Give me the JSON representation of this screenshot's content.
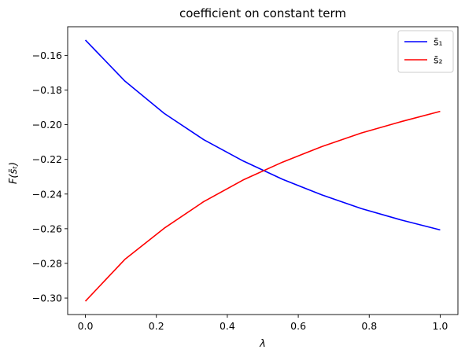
{
  "chart_data": {
    "type": "line",
    "title": "coefficient on constant term",
    "xlabel": "λ",
    "ylabel": "F(s̄ₜ)",
    "xlim": [
      -0.05,
      1.05
    ],
    "ylim": [
      -0.3095,
      -0.1435
    ],
    "x_ticks": [
      0.0,
      0.2,
      0.4,
      0.6,
      0.8,
      1.0
    ],
    "x_tick_labels": [
      "0.0",
      "0.2",
      "0.4",
      "0.6",
      "0.8",
      "1.0"
    ],
    "y_ticks": [
      -0.16,
      -0.18,
      -0.2,
      -0.22,
      -0.24,
      -0.26,
      -0.28,
      -0.3
    ],
    "y_tick_labels": [
      "−0.16",
      "−0.18",
      "−0.20",
      "−0.22",
      "−0.24",
      "−0.26",
      "−0.28",
      "−0.30"
    ],
    "grid": false,
    "legend_position": "top-right",
    "x": [
      0.0,
      0.1111,
      0.2222,
      0.3333,
      0.4444,
      0.5556,
      0.6667,
      0.7778,
      0.8889,
      1.0
    ],
    "series": [
      {
        "name": "s̄₁",
        "color": "#0000ff",
        "values": [
          -0.1512,
          -0.1748,
          -0.1935,
          -0.2086,
          -0.2209,
          -0.2315,
          -0.2405,
          -0.2484,
          -0.2549,
          -0.2607
        ]
      },
      {
        "name": "s̄₂",
        "color": "#ff0000",
        "values": [
          -0.3018,
          -0.2777,
          -0.2597,
          -0.2444,
          -0.2319,
          -0.2216,
          -0.2126,
          -0.2048,
          -0.1983,
          -0.1923
        ]
      }
    ]
  }
}
